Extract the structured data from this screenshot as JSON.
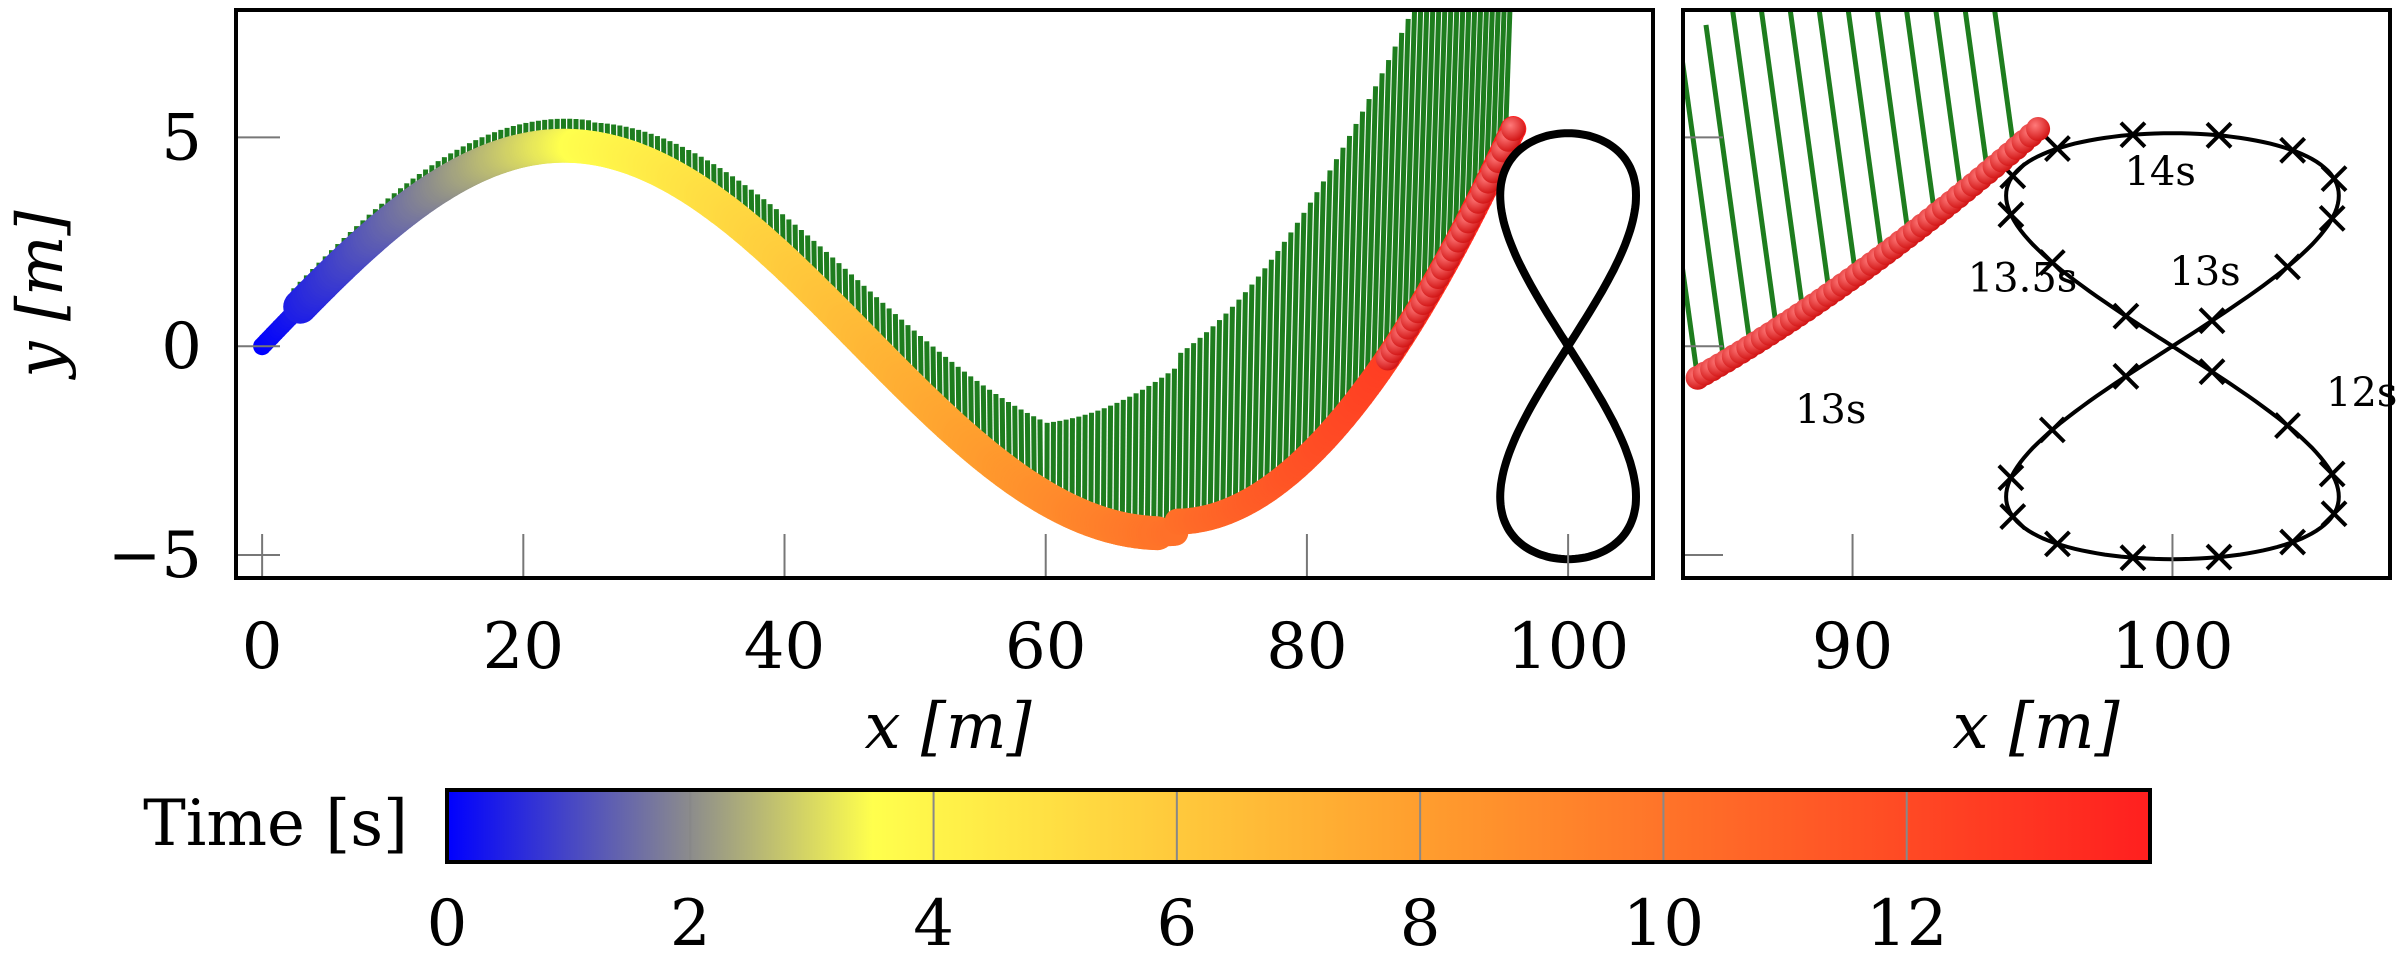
{
  "chart_data": [
    {
      "type": "scatter",
      "panel": "main",
      "xlabel": "x [m]",
      "ylabel": "y [m]",
      "xlim": [
        -2,
        106.5
      ],
      "ylim": [
        -5.55,
        8.05
      ],
      "xticks": [
        0,
        20,
        40,
        60,
        80,
        100
      ],
      "xticklabels": [
        "0",
        "20",
        "40",
        "60",
        "80",
        "100"
      ],
      "yticks": [
        -5,
        0,
        5
      ],
      "yticklabels": [
        "−5",
        "0",
        "5"
      ],
      "series": [
        {
          "name": "vehicle trajectory (colored by time)",
          "t_range_s": [
            0,
            13.95
          ],
          "x_end_m": 95.8,
          "y_start_m": 0,
          "y_max_m": 4.8,
          "y_min_m": -4.2,
          "y_end_m": 5.2
        },
        {
          "name": "heading lines",
          "color": "#1e7d1e"
        },
        {
          "name": "figure-eight reference path",
          "center_x_m": 100,
          "center_y_m": 0,
          "half_width_m": 5.2,
          "half_height_m": 5.1,
          "color": "#000000"
        }
      ]
    },
    {
      "type": "scatter",
      "panel": "zoom",
      "xlabel": "x [m]",
      "xlim": [
        84.7,
        106.8
      ],
      "ylim": [
        -5.55,
        8.05
      ],
      "xticks": [
        90,
        100
      ],
      "xticklabels": [
        "90",
        "100"
      ],
      "annotations": [
        {
          "text": "13s",
          "x": 88.2,
          "y": -1.5
        },
        {
          "text": "13.5s",
          "x": 93.6,
          "y": 1.65
        },
        {
          "text": "14s",
          "x": 98.5,
          "y": 4.2
        },
        {
          "text": "13s",
          "x": 99.9,
          "y": 1.8
        },
        {
          "text": "12s",
          "x": 104.8,
          "y": -1.1
        }
      ],
      "marker_times_s": "every 0.5 s on reference path"
    }
  ],
  "colorbar": {
    "label": "Time [s]",
    "range": [
      0,
      14
    ],
    "ticks": [
      0,
      2,
      4,
      6,
      8,
      10,
      12
    ],
    "ticklabels": [
      "0",
      "2",
      "4",
      "6",
      "8",
      "10",
      "12"
    ],
    "colormap": [
      "#0000ff",
      "#8c8c8c",
      "#ffff4d",
      "#ff9e2e",
      "#ff1f1f"
    ]
  },
  "colors": {
    "heading": "#1e7d1e",
    "reference": "#000000",
    "marker_start": "#ff5a5a",
    "marker_end": "#d41212"
  }
}
